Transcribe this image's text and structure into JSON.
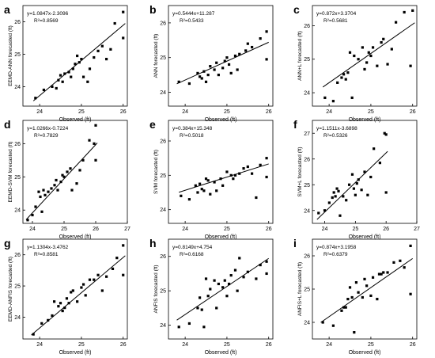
{
  "figure": {
    "x_label": "Observed (ft)"
  },
  "chart_data": [
    {
      "panel": "a",
      "type": "scatter",
      "ylabel": "EEMD-ANN forecasted (ft)",
      "xlabel": "Observed (ft)",
      "equation": "y=1.0847x-2.3096",
      "r2": "R²=0.8569",
      "xlim": [
        23.6,
        26.1
      ],
      "ylim": [
        23.4,
        26.5
      ],
      "xticks": [
        "24",
        "25",
        "26"
      ],
      "yticks": [
        "24",
        "25",
        "26"
      ],
      "fit": {
        "slope": 1.0847,
        "intercept": -2.3096
      },
      "points": [
        [
          23.9,
          23.65
        ],
        [
          24.1,
          23.9
        ],
        [
          24.3,
          24.0
        ],
        [
          24.4,
          23.95
        ],
        [
          24.45,
          24.2
        ],
        [
          24.5,
          24.35
        ],
        [
          24.55,
          24.15
        ],
        [
          24.6,
          24.4
        ],
        [
          24.7,
          24.45
        ],
        [
          24.75,
          24.3
        ],
        [
          24.8,
          24.55
        ],
        [
          24.85,
          24.7
        ],
        [
          24.9,
          24.95
        ],
        [
          24.95,
          24.75
        ],
        [
          25.0,
          24.85
        ],
        [
          25.05,
          24.3
        ],
        [
          25.2,
          24.55
        ],
        [
          25.3,
          24.9
        ],
        [
          25.4,
          25.1
        ],
        [
          25.5,
          25.25
        ],
        [
          25.6,
          24.85
        ],
        [
          25.7,
          25.15
        ],
        [
          25.8,
          25.95
        ],
        [
          26.0,
          26.3
        ],
        [
          26.0,
          25.5
        ],
        [
          25.15,
          24.15
        ]
      ]
    },
    {
      "panel": "b",
      "type": "scatter",
      "ylabel": "ANN forecasted (ft)",
      "xlabel": "Observed (ft)",
      "equation": "y=0.5444x+11.287",
      "r2": "R²=0.5433",
      "xlim": [
        23.6,
        26.1
      ],
      "ylim": [
        23.6,
        26.5
      ],
      "xticks": [
        "24",
        "25",
        "26"
      ],
      "yticks": [
        "24",
        "25",
        "26"
      ],
      "fit": {
        "slope": 0.5444,
        "intercept": 11.287
      },
      "points": [
        [
          23.85,
          24.3
        ],
        [
          24.1,
          24.25
        ],
        [
          24.3,
          24.55
        ],
        [
          24.35,
          24.45
        ],
        [
          24.45,
          24.6
        ],
        [
          24.5,
          24.3
        ],
        [
          24.55,
          24.5
        ],
        [
          24.6,
          24.75
        ],
        [
          24.7,
          24.65
        ],
        [
          24.75,
          24.85
        ],
        [
          24.8,
          24.5
        ],
        [
          24.9,
          24.7
        ],
        [
          24.95,
          24.9
        ],
        [
          25.0,
          25.0
        ],
        [
          25.05,
          24.8
        ],
        [
          25.1,
          24.55
        ],
        [
          25.2,
          25.05
        ],
        [
          25.3,
          25.1
        ],
        [
          25.45,
          25.2
        ],
        [
          25.5,
          25.4
        ],
        [
          25.6,
          25.3
        ],
        [
          25.8,
          25.55
        ],
        [
          25.95,
          25.75
        ],
        [
          25.95,
          24.95
        ],
        [
          24.4,
          24.4
        ],
        [
          25.25,
          24.65
        ]
      ]
    },
    {
      "panel": "c",
      "type": "scatter",
      "ylabel": "ANN+L forecasted (ft)",
      "xlabel": "Observed (ft)",
      "equation": "y=0.872x+3.3704",
      "r2": "R²=0.5681",
      "xlim": [
        23.6,
        26.1
      ],
      "ylim": [
        23.6,
        26.6
      ],
      "xticks": [
        "24",
        "25",
        "26"
      ],
      "yticks": [
        "24",
        "25",
        "26"
      ],
      "fit": {
        "slope": 0.872,
        "intercept": 3.3704
      },
      "points": [
        [
          23.9,
          23.85
        ],
        [
          24.1,
          23.75
        ],
        [
          24.2,
          24.3
        ],
        [
          24.3,
          24.45
        ],
        [
          24.35,
          24.55
        ],
        [
          24.4,
          24.4
        ],
        [
          24.45,
          24.6
        ],
        [
          24.5,
          25.2
        ],
        [
          24.55,
          23.85
        ],
        [
          24.6,
          25.1
        ],
        [
          24.7,
          25.0
        ],
        [
          24.8,
          25.35
        ],
        [
          24.85,
          24.7
        ],
        [
          24.9,
          24.9
        ],
        [
          25.0,
          25.1
        ],
        [
          25.05,
          25.35
        ],
        [
          25.15,
          24.8
        ],
        [
          25.25,
          25.5
        ],
        [
          25.3,
          25.6
        ],
        [
          25.4,
          24.85
        ],
        [
          25.5,
          25.3
        ],
        [
          25.6,
          26.1
        ],
        [
          25.8,
          26.4
        ],
        [
          26.0,
          26.45
        ],
        [
          25.95,
          24.8
        ],
        [
          24.95,
          25.2
        ]
      ]
    },
    {
      "panel": "d",
      "type": "scatter",
      "ylabel": "EEMD-SVM forecasted (ft)",
      "xlabel": "Observed (ft)",
      "equation": "y=1.0266x-0.7224",
      "r2": "R²=0.7829",
      "xlim": [
        23.7,
        27.0
      ],
      "ylim": [
        23.6,
        26.7
      ],
      "xticks": [
        "24",
        "25",
        "26",
        "27"
      ],
      "yticks": [
        "24",
        "25",
        "26"
      ],
      "fit": {
        "slope": 1.0266,
        "intercept": -0.7224
      },
      "points": [
        [
          23.85,
          23.7
        ],
        [
          24.0,
          23.85
        ],
        [
          24.1,
          24.1
        ],
        [
          24.2,
          24.55
        ],
        [
          24.25,
          24.4
        ],
        [
          24.3,
          23.95
        ],
        [
          24.35,
          24.6
        ],
        [
          24.4,
          24.45
        ],
        [
          24.5,
          24.55
        ],
        [
          24.6,
          24.65
        ],
        [
          24.7,
          24.75
        ],
        [
          24.75,
          24.9
        ],
        [
          24.8,
          24.6
        ],
        [
          24.9,
          24.85
        ],
        [
          25.0,
          25.0
        ],
        [
          25.1,
          25.15
        ],
        [
          25.2,
          25.25
        ],
        [
          25.25,
          24.6
        ],
        [
          25.4,
          24.8
        ],
        [
          25.5,
          25.2
        ],
        [
          25.6,
          25.5
        ],
        [
          25.8,
          26.1
        ],
        [
          25.95,
          26.0
        ],
        [
          26.0,
          26.55
        ],
        [
          26.0,
          25.5
        ],
        [
          24.95,
          25.05
        ]
      ]
    },
    {
      "panel": "e",
      "type": "scatter",
      "ylabel": "SVM forecasted (ft)",
      "xlabel": "Observed (ft)",
      "equation": "y=0.384x+15.348",
      "r2": "R²=0.5018",
      "xlim": [
        23.6,
        26.1
      ],
      "ylim": [
        23.6,
        26.6
      ],
      "xticks": [
        "24",
        "25",
        "26"
      ],
      "yticks": [
        "24",
        "25",
        "26"
      ],
      "fit": {
        "slope": 0.384,
        "intercept": 15.348
      },
      "points": [
        [
          23.9,
          24.4
        ],
        [
          24.1,
          24.3
        ],
        [
          24.25,
          24.7
        ],
        [
          24.3,
          24.5
        ],
        [
          24.35,
          24.75
        ],
        [
          24.4,
          24.6
        ],
        [
          24.45,
          24.55
        ],
        [
          24.5,
          24.9
        ],
        [
          24.55,
          24.85
        ],
        [
          24.6,
          24.45
        ],
        [
          24.7,
          24.8
        ],
        [
          24.75,
          24.55
        ],
        [
          24.85,
          24.9
        ],
        [
          24.9,
          24.7
        ],
        [
          25.0,
          25.1
        ],
        [
          25.1,
          25.0
        ],
        [
          25.2,
          25.0
        ],
        [
          25.3,
          25.05
        ],
        [
          25.4,
          25.2
        ],
        [
          25.5,
          25.25
        ],
        [
          25.6,
          25.05
        ],
        [
          25.7,
          24.35
        ],
        [
          25.8,
          25.3
        ],
        [
          25.95,
          25.5
        ],
        [
          25.95,
          24.95
        ],
        [
          25.15,
          24.9
        ]
      ]
    },
    {
      "panel": "f",
      "type": "scatter",
      "ylabel": "SVM+L forecasted (ft)",
      "xlabel": "Observed (ft)",
      "equation": "y=1.1511x-3.6898",
      "r2": "R²=0.5326",
      "xlim": [
        23.6,
        27.0
      ],
      "ylim": [
        23.5,
        27.5
      ],
      "xticks": [
        "24",
        "25",
        "26",
        "27"
      ],
      "yticks": [
        "24",
        "25",
        "26",
        "27"
      ],
      "fit": {
        "slope": 1.1511,
        "intercept": -3.6898
      },
      "points": [
        [
          23.8,
          23.9
        ],
        [
          24.0,
          24.0
        ],
        [
          24.15,
          24.3
        ],
        [
          24.25,
          24.5
        ],
        [
          24.3,
          24.7
        ],
        [
          24.35,
          24.55
        ],
        [
          24.4,
          24.85
        ],
        [
          24.45,
          24.75
        ],
        [
          24.5,
          23.8
        ],
        [
          24.6,
          24.55
        ],
        [
          24.7,
          24.4
        ],
        [
          24.8,
          25.0
        ],
        [
          24.9,
          25.4
        ],
        [
          25.0,
          24.6
        ],
        [
          25.1,
          25.2
        ],
        [
          25.2,
          24.8
        ],
        [
          25.3,
          25.5
        ],
        [
          25.4,
          24.6
        ],
        [
          25.5,
          25.3
        ],
        [
          25.6,
          26.4
        ],
        [
          25.8,
          25.85
        ],
        [
          25.95,
          27.0
        ],
        [
          26.0,
          26.95
        ],
        [
          26.0,
          24.7
        ],
        [
          24.95,
          24.85
        ],
        [
          25.05,
          25.05
        ]
      ]
    },
    {
      "panel": "g",
      "type": "scatter",
      "ylabel": "EEMD-ANFIS forecasted (ft)",
      "xlabel": "Observed (ft)",
      "equation": "y=1.1304x-3.4762",
      "r2": "R²=0.8581",
      "xlim": [
        23.6,
        26.1
      ],
      "ylim": [
        23.3,
        26.5
      ],
      "xticks": [
        "24",
        "25",
        "26"
      ],
      "yticks": [
        "24",
        "25",
        "26"
      ],
      "fit": {
        "slope": 1.1304,
        "intercept": -3.4762
      },
      "points": [
        [
          23.85,
          23.45
        ],
        [
          24.05,
          23.8
        ],
        [
          24.2,
          23.9
        ],
        [
          24.3,
          24.05
        ],
        [
          24.35,
          24.5
        ],
        [
          24.45,
          24.35
        ],
        [
          24.5,
          24.45
        ],
        [
          24.55,
          24.2
        ],
        [
          24.65,
          24.6
        ],
        [
          24.7,
          24.45
        ],
        [
          24.75,
          24.8
        ],
        [
          24.8,
          24.85
        ],
        [
          24.9,
          24.5
        ],
        [
          25.0,
          24.95
        ],
        [
          25.05,
          25.05
        ],
        [
          25.1,
          24.7
        ],
        [
          25.2,
          25.2
        ],
        [
          25.3,
          25.2
        ],
        [
          25.4,
          25.35
        ],
        [
          25.5,
          24.85
        ],
        [
          25.6,
          25.3
        ],
        [
          25.75,
          25.55
        ],
        [
          25.85,
          25.9
        ],
        [
          26.0,
          26.3
        ],
        [
          26.0,
          25.35
        ],
        [
          24.6,
          24.3
        ]
      ]
    },
    {
      "panel": "h",
      "type": "scatter",
      "ylabel": "ANFIS forecasted (ft)",
      "xlabel": "Observed (ft)",
      "equation": "y=0.8149x+4.754",
      "r2": "R²=0.6168",
      "xlim": [
        23.6,
        26.1
      ],
      "ylim": [
        23.6,
        26.5
      ],
      "xticks": [
        "24",
        "25",
        "26"
      ],
      "yticks": [
        "24",
        "25",
        "26"
      ],
      "fit": {
        "slope": 0.8149,
        "intercept": 4.754
      },
      "points": [
        [
          23.85,
          23.95
        ],
        [
          24.1,
          24.05
        ],
        [
          24.3,
          24.5
        ],
        [
          24.35,
          24.8
        ],
        [
          24.4,
          24.45
        ],
        [
          24.45,
          23.95
        ],
        [
          24.5,
          25.35
        ],
        [
          24.55,
          24.85
        ],
        [
          24.6,
          25.05
        ],
        [
          24.7,
          25.3
        ],
        [
          24.75,
          24.5
        ],
        [
          24.8,
          25.2
        ],
        [
          24.9,
          25.1
        ],
        [
          24.95,
          25.3
        ],
        [
          25.0,
          24.85
        ],
        [
          25.05,
          25.2
        ],
        [
          25.1,
          25.45
        ],
        [
          25.2,
          25.6
        ],
        [
          25.25,
          25.0
        ],
        [
          25.3,
          25.95
        ],
        [
          25.4,
          25.4
        ],
        [
          25.5,
          25.55
        ],
        [
          25.7,
          25.35
        ],
        [
          25.8,
          25.75
        ],
        [
          25.95,
          25.85
        ],
        [
          25.95,
          25.5
        ]
      ]
    },
    {
      "panel": "i",
      "type": "scatter",
      "ylabel": "ANFIS+L forecasted (ft)",
      "xlabel": "Observed (ft)",
      "equation": "y=0.874x+3.1958",
      "r2": "R²=0.6379",
      "xlim": [
        23.6,
        26.1
      ],
      "ylim": [
        23.5,
        26.5
      ],
      "xticks": [
        "24",
        "25",
        "26"
      ],
      "yticks": [
        "24",
        "25",
        "26"
      ],
      "fit": {
        "slope": 0.874,
        "intercept": 3.1958
      },
      "points": [
        [
          23.85,
          24.0
        ],
        [
          24.1,
          23.9
        ],
        [
          24.3,
          24.35
        ],
        [
          24.35,
          24.45
        ],
        [
          24.4,
          24.45
        ],
        [
          24.45,
          24.7
        ],
        [
          24.5,
          25.05
        ],
        [
          24.55,
          24.75
        ],
        [
          24.6,
          23.7
        ],
        [
          24.65,
          25.2
        ],
        [
          24.7,
          24.9
        ],
        [
          24.8,
          24.75
        ],
        [
          24.85,
          25.3
        ],
        [
          24.9,
          25.1
        ],
        [
          25.0,
          24.8
        ],
        [
          25.05,
          25.35
        ],
        [
          25.15,
          24.7
        ],
        [
          25.25,
          25.45
        ],
        [
          25.3,
          25.5
        ],
        [
          25.4,
          25.5
        ],
        [
          25.55,
          25.8
        ],
        [
          25.7,
          25.85
        ],
        [
          25.8,
          25.65
        ],
        [
          25.95,
          26.3
        ],
        [
          25.95,
          24.85
        ],
        [
          25.2,
          25.45
        ]
      ]
    }
  ]
}
